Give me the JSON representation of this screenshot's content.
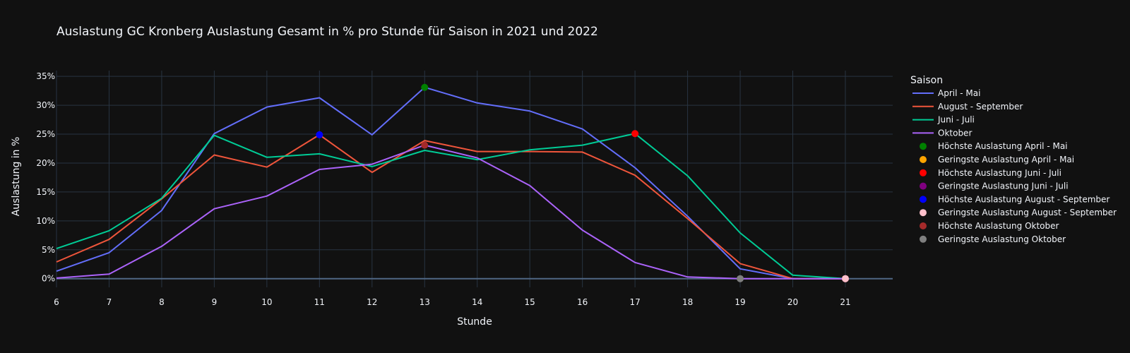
{
  "chart_data": {
    "type": "line",
    "title": "Auslastung GC Kronberg Auslastung Gesamt in % pro Stunde für Saison in 2021 und 2022",
    "xlabel": "Stunde",
    "ylabel": "Auslastung in %",
    "xlim": [
      6,
      21.9
    ],
    "ylim": [
      -0.015,
      0.36
    ],
    "xticks": [
      6,
      7,
      8,
      9,
      10,
      11,
      12,
      13,
      14,
      15,
      16,
      17,
      18,
      19,
      20,
      21
    ],
    "yticks": [
      0,
      0.05,
      0.1,
      0.15,
      0.2,
      0.25,
      0.3,
      0.35
    ],
    "ytick_labels": [
      "0%",
      "5%",
      "10%",
      "15%",
      "20%",
      "25%",
      "30%",
      "35%"
    ],
    "grid": true,
    "legend_title": "Saison",
    "legend_placement": "right",
    "x": [
      6,
      7,
      8,
      9,
      10,
      11,
      12,
      13,
      14,
      15,
      16,
      17,
      18,
      19,
      20,
      21
    ],
    "series": [
      {
        "name": "April - Mai",
        "color": "#636efa",
        "values": [
          0.013,
          0.045,
          0.118,
          0.251,
          0.297,
          0.313,
          0.249,
          0.331,
          0.304,
          0.29,
          0.259,
          0.192,
          0.108,
          0.017,
          0.0,
          0.0
        ]
      },
      {
        "name": "August - September",
        "color": "#ef553b",
        "values": [
          0.029,
          0.068,
          0.138,
          0.214,
          0.193,
          0.249,
          0.184,
          0.239,
          0.22,
          0.22,
          0.219,
          0.179,
          0.104,
          0.026,
          0.0,
          0.0
        ]
      },
      {
        "name": "Juni - Juli",
        "color": "#00cc96",
        "values": [
          0.052,
          0.083,
          0.139,
          0.248,
          0.21,
          0.216,
          0.194,
          0.222,
          0.206,
          0.223,
          0.231,
          0.251,
          0.178,
          0.079,
          0.006,
          0.0
        ]
      },
      {
        "name": "Oktober",
        "color": "#ab63fa",
        "values": [
          0.001,
          0.008,
          0.056,
          0.121,
          0.143,
          0.189,
          0.198,
          0.231,
          0.209,
          0.161,
          0.084,
          0.028,
          0.003,
          0.0,
          0.0,
          0.0
        ]
      }
    ],
    "markers": [
      {
        "name": "Höchste Auslastung April - Mai",
        "color": "#008000",
        "x": 13,
        "y": 0.331
      },
      {
        "name": "Geringste Auslastung April - Mai",
        "color": "#ffa500",
        "x": 21,
        "y": 0.0
      },
      {
        "name": "Höchste Auslastung Juni - Juli",
        "color": "#ff0000",
        "x": 17,
        "y": 0.251
      },
      {
        "name": "Geringste Auslastung Juni - Juli",
        "color": "#800080",
        "x": 21,
        "y": 0.0
      },
      {
        "name": "Höchste Auslastung August - September",
        "color": "#0000ff",
        "x": 11,
        "y": 0.249
      },
      {
        "name": "Geringste Auslastung August - September",
        "color": "#ffc0cb",
        "x": 21,
        "y": 0.0
      },
      {
        "name": "Höchste Auslastung Oktober",
        "color": "#a52a2a",
        "x": 13,
        "y": 0.231
      },
      {
        "name": "Geringste Auslastung Oktober",
        "color": "#808080",
        "x": 19,
        "y": 0.0
      }
    ]
  }
}
